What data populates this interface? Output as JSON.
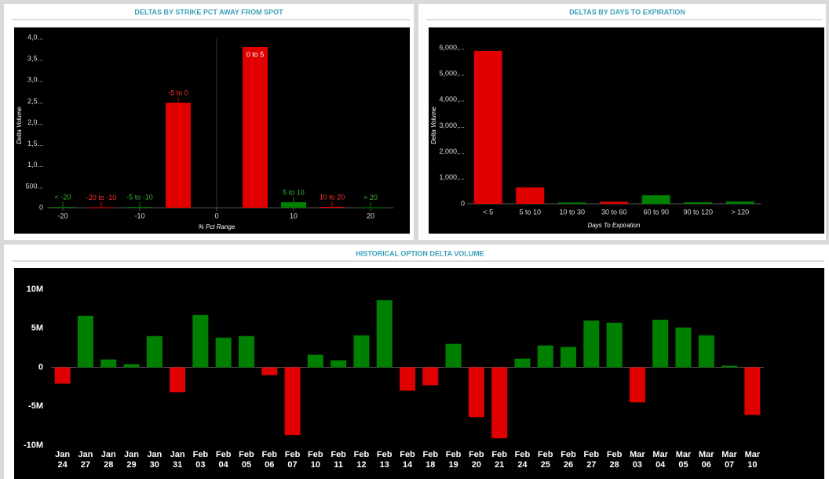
{
  "chart_data": [
    {
      "type": "bar",
      "title": "DELTAS BY STRIKE PCT AWAY FROM SPOT",
      "y_label": "Delta Volume",
      "x_label": "% Pct Range",
      "categories": [
        "< -20",
        "-20 to -10",
        "-5 to -10",
        "-5 to 0",
        "0 to 5",
        "5 to 10",
        "10 to 20",
        "> 20"
      ],
      "x": [
        -20,
        -15,
        -10,
        -5,
        5,
        10,
        15,
        20
      ],
      "values": [
        15,
        10,
        15,
        2470,
        3780,
        130,
        20,
        10
      ],
      "colors": [
        "#008000",
        "#e00000",
        "#008000",
        "#e00000",
        "#e00000",
        "#008000",
        "#e00000",
        "#008000"
      ],
      "xlim": [
        -22,
        23
      ],
      "xticks": [
        -20,
        -10,
        0,
        10,
        20
      ],
      "ylim": [
        0,
        4000
      ],
      "yticks": [
        0,
        {
          "value": 500,
          "label": "500..."
        },
        {
          "value": 1000,
          "label": "1,0..."
        },
        {
          "value": 1500,
          "label": "1,5..."
        },
        {
          "value": 2000,
          "label": "2,0..."
        },
        {
          "value": 2500,
          "label": "2,5..."
        },
        {
          "value": 3000,
          "label": "3,0..."
        },
        {
          "value": 3500,
          "label": "3,5..."
        },
        {
          "value": 4000,
          "label": "4,0..."
        }
      ]
    },
    {
      "type": "bar",
      "title": "DELTAS BY DAYS TO EXPIRATION",
      "y_label": "Delta Volume",
      "x_label": "Days To Expiration",
      "categories": [
        "< 5",
        "5 to 10",
        "10 to 30",
        "30 to 60",
        "60 to 90",
        "90 to 120",
        "> 120"
      ],
      "values": [
        5880,
        630,
        50,
        80,
        330,
        60,
        90
      ],
      "colors": [
        "#e00000",
        "#e00000",
        "#008000",
        "#e00000",
        "#008000",
        "#008000",
        "#008000"
      ],
      "ylim": [
        0,
        6000
      ],
      "yticks": [
        0,
        {
          "value": 1000,
          "label": "1,000,..."
        },
        {
          "value": 2000,
          "label": "2,000,..."
        },
        {
          "value": 3000,
          "label": "3,000,..."
        },
        {
          "value": 4000,
          "label": "4,000,..."
        },
        {
          "value": 5000,
          "label": "5,000,..."
        },
        {
          "value": 6000,
          "label": "6,000,..."
        }
      ]
    },
    {
      "type": "bar",
      "title": "HISTORICAL OPTION DELTA VOLUME",
      "categories": [
        "Jan 24",
        "Jan 27",
        "Jan 28",
        "Jan 29",
        "Jan 30",
        "Jan 31",
        "Feb 03",
        "Feb 04",
        "Feb 05",
        "Feb 06",
        "Feb 07",
        "Feb 10",
        "Feb 11",
        "Feb 12",
        "Feb 13",
        "Feb 14",
        "Feb 18",
        "Feb 19",
        "Feb 20",
        "Feb 21",
        "Feb 24",
        "Feb 25",
        "Feb 26",
        "Feb 27",
        "Feb 28",
        "Mar 03",
        "Mar 04",
        "Mar 05",
        "Mar 06",
        "Mar 07",
        "Mar 10"
      ],
      "values": [
        -2100000,
        6600000,
        1000000,
        400000,
        4000000,
        -3200000,
        6700000,
        3800000,
        4000000,
        -1000000,
        -8700000,
        1600000,
        900000,
        4100000,
        8600000,
        -3000000,
        -2300000,
        3000000,
        -6400000,
        -9100000,
        1100000,
        2800000,
        2600000,
        6000000,
        5700000,
        -4500000,
        6100000,
        5100000,
        4100000,
        200000,
        -6100000
      ],
      "positive_color": "#008000",
      "negative_color": "#e00000",
      "ylim": [
        -10000000,
        10000000
      ],
      "yticks": [
        {
          "value": -10000000,
          "label": "-10M"
        },
        {
          "value": -5000000,
          "label": "-5M"
        },
        0,
        {
          "value": 5000000,
          "label": "5M"
        },
        {
          "value": 10000000,
          "label": "10M"
        }
      ]
    }
  ]
}
